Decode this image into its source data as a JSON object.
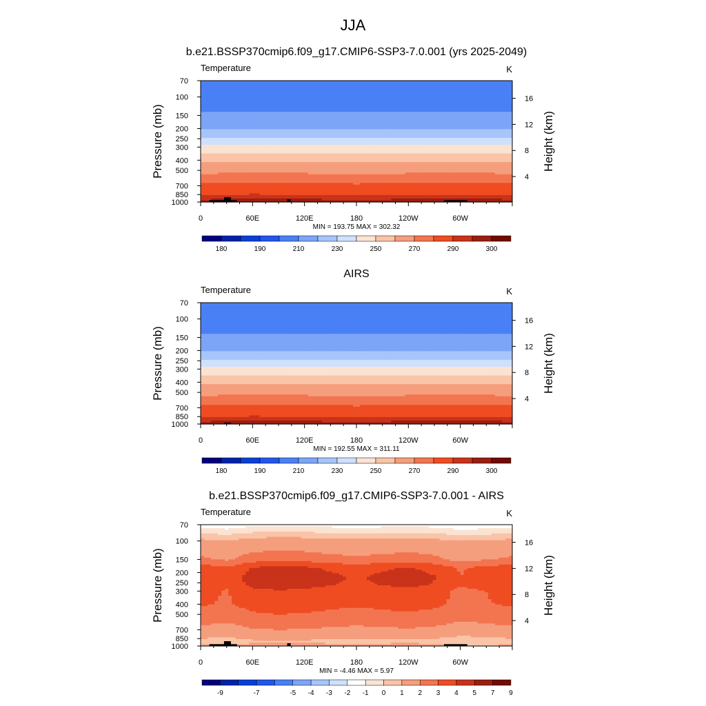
{
  "figure": {
    "title": "JJA"
  },
  "chart_data": [
    {
      "type": "heatmap",
      "title": "b.e21.BSSP370cmip6.f09_g17.CMIP6-SSP3-7.0.001 (yrs 2025-2049)",
      "variable": "Temperature",
      "units": "K",
      "ylabel": "Pressure (mb)",
      "y2label": "Height (km)",
      "stats": "MIN = 193.75  MAX = 302.32",
      "x_ticks": [
        "0",
        "60E",
        "120E",
        "180",
        "120W",
        "60W"
      ],
      "x_tick_lon": [
        0,
        60,
        120,
        180,
        240,
        300
      ],
      "xlim": [
        0,
        360
      ],
      "p_ticks": [
        "70",
        "100",
        "150",
        "200",
        "250",
        "300",
        "400",
        "500",
        "700",
        "850",
        "1000"
      ],
      "p_tick_values": [
        70,
        100,
        150,
        200,
        250,
        300,
        400,
        500,
        700,
        850,
        1000
      ],
      "ylim": [
        1000,
        70
      ],
      "y_scale": "log",
      "z_ticks": [
        "4",
        "8",
        "12",
        "16"
      ],
      "z_tick_values": [
        4,
        8,
        12,
        16
      ],
      "levels": [
        180,
        185,
        190,
        200,
        210,
        220,
        230,
        240,
        250,
        260,
        270,
        280,
        290,
        295,
        300
      ],
      "colorbar_labels": [
        "180",
        "190",
        "210",
        "230",
        "250",
        "270",
        "290",
        "300"
      ],
      "colorbar_label_levels": [
        180,
        190,
        210,
        230,
        250,
        270,
        290,
        300
      ],
      "colors": [
        "#00007f",
        "#0022aa",
        "#0a3fd6",
        "#2255ee",
        "#4a80f5",
        "#7ca5f8",
        "#a7c5fb",
        "#cfe0fd",
        "#fbe3d2",
        "#f9c4a8",
        "#f59e7d",
        "#f27550",
        "#ef4c22",
        "#c8331a",
        "#9b1e10",
        "#730a00"
      ],
      "profile": {
        "p": [
          70,
          85,
          100,
          120,
          150,
          180,
          200,
          230,
          250,
          280,
          300,
          350,
          400,
          450,
          500,
          600,
          700,
          800,
          850,
          900,
          950,
          1000
        ],
        "t": [
          203,
          203.5,
          204,
          206,
          212,
          217,
          220,
          226,
          231,
          238,
          243,
          250,
          258,
          263,
          267,
          275,
          282,
          287,
          289,
          292,
          295,
          298
        ]
      },
      "lon_anomaly": {
        "lon": [
          0,
          30,
          60,
          90,
          120,
          150,
          180,
          210,
          240,
          270,
          300,
          330,
          360
        ],
        "dt": [
          0,
          0.8,
          1.6,
          1.2,
          0.6,
          0.2,
          0,
          0.2,
          0.6,
          1.1,
          1.4,
          0.8,
          0
        ]
      },
      "surface_boxes": [
        {
          "lon0": 10,
          "lon1": 42,
          "p_top": 960
        },
        {
          "lon0": 27,
          "lon1": 35,
          "p_top": 900
        },
        {
          "lon0": 100,
          "lon1": 104,
          "p_top": 940
        },
        {
          "lon0": 281,
          "lon1": 308,
          "p_top": 960
        }
      ]
    },
    {
      "type": "heatmap",
      "title": "AIRS",
      "variable": "Temperature",
      "units": "K",
      "ylabel": "Pressure (mb)",
      "y2label": "Height (km)",
      "stats": "MIN = 192.55  MAX = 311.11",
      "x_ticks": [
        "0",
        "60E",
        "120E",
        "180",
        "120W",
        "60W"
      ],
      "x_tick_lon": [
        0,
        60,
        120,
        180,
        240,
        300
      ],
      "xlim": [
        0,
        360
      ],
      "p_ticks": [
        "70",
        "100",
        "150",
        "200",
        "250",
        "300",
        "400",
        "500",
        "700",
        "850",
        "1000"
      ],
      "p_tick_values": [
        70,
        100,
        150,
        200,
        250,
        300,
        400,
        500,
        700,
        850,
        1000
      ],
      "ylim": [
        1000,
        70
      ],
      "y_scale": "log",
      "z_ticks": [
        "4",
        "8",
        "12",
        "16"
      ],
      "z_tick_values": [
        4,
        8,
        12,
        16
      ],
      "levels": [
        180,
        185,
        190,
        200,
        210,
        220,
        230,
        240,
        250,
        260,
        270,
        280,
        290,
        295,
        300
      ],
      "colorbar_labels": [
        "180",
        "190",
        "210",
        "230",
        "250",
        "270",
        "290",
        "300"
      ],
      "colorbar_label_levels": [
        180,
        190,
        210,
        230,
        250,
        270,
        290,
        300
      ],
      "colors": [
        "#00007f",
        "#0022aa",
        "#0a3fd6",
        "#2255ee",
        "#4a80f5",
        "#7ca5f8",
        "#a7c5fb",
        "#cfe0fd",
        "#fbe3d2",
        "#f9c4a8",
        "#f59e7d",
        "#f27550",
        "#ef4c22",
        "#c8331a",
        "#9b1e10",
        "#730a00"
      ],
      "profile": {
        "p": [
          70,
          85,
          100,
          120,
          150,
          180,
          200,
          230,
          250,
          280,
          300,
          350,
          400,
          450,
          500,
          600,
          700,
          800,
          850,
          900,
          950,
          1000
        ],
        "t": [
          203,
          203.5,
          204,
          206,
          212,
          217,
          220,
          226,
          231,
          238,
          243,
          250,
          258,
          263,
          267,
          275,
          282,
          287,
          289,
          292,
          295,
          298
        ]
      },
      "lon_anomaly": {
        "lon": [
          0,
          30,
          60,
          90,
          120,
          150,
          180,
          210,
          240,
          270,
          300,
          330,
          360
        ],
        "dt": [
          0,
          0.8,
          1.6,
          1.2,
          0.6,
          0.2,
          0,
          0.2,
          0.6,
          1.1,
          1.4,
          0.8,
          0
        ]
      },
      "surface_boxes": [
        {
          "lon0": 27,
          "lon1": 35,
          "p_top": 970
        }
      ]
    },
    {
      "type": "heatmap",
      "title": "b.e21.BSSP370cmip6.f09_g17.CMIP6-SSP3-7.0.001 - AIRS",
      "variable": "Temperature",
      "units": "K",
      "ylabel": "Pressure (mb)",
      "y2label": "Height (km)",
      "stats": "MIN =  -4.46  MAX =   5.97",
      "x_ticks": [
        "0",
        "60E",
        "120E",
        "180",
        "120W",
        "60W"
      ],
      "x_tick_lon": [
        0,
        60,
        120,
        180,
        240,
        300
      ],
      "xlim": [
        0,
        360
      ],
      "p_ticks": [
        "70",
        "100",
        "150",
        "200",
        "250",
        "300",
        "400",
        "500",
        "700",
        "850",
        "1000"
      ],
      "p_tick_values": [
        70,
        100,
        150,
        200,
        250,
        300,
        400,
        500,
        700,
        850,
        1000
      ],
      "ylim": [
        1000,
        70
      ],
      "y_scale": "log",
      "z_ticks": [
        "4",
        "8",
        "12",
        "16"
      ],
      "z_tick_values": [
        4,
        8,
        12,
        16
      ],
      "levels": [
        -9,
        -8,
        -7,
        -6,
        -5,
        -4,
        -3,
        -2,
        -1,
        0,
        1,
        2,
        3,
        4,
        5,
        7,
        9
      ],
      "colorbar_labels": [
        "-9",
        "-7",
        "-5",
        "-4",
        "-3",
        "-2",
        "-1",
        "0",
        "1",
        "2",
        "3",
        "4",
        "5",
        "7",
        "9"
      ],
      "colorbar_label_levels": [
        -9,
        -7,
        -5,
        -4,
        -3,
        -2,
        -1,
        0,
        1,
        2,
        3,
        4,
        5,
        7,
        9
      ],
      "colors": [
        "#00007f",
        "#0022aa",
        "#0a3fd6",
        "#2255ee",
        "#4a80f5",
        "#7ca5f8",
        "#a7c5fb",
        "#cfe0fd",
        "#ffffff",
        "#fbe3d2",
        "#f9c4a8",
        "#f59e7d",
        "#f27550",
        "#ef4c22",
        "#c8331a",
        "#9b1e10",
        "#730a00"
      ],
      "profile": {
        "p": [
          70,
          80,
          90,
          100,
          120,
          150,
          180,
          220,
          260,
          300,
          400,
          500,
          600,
          700,
          800,
          850,
          900,
          950,
          1000
        ],
        "t": [
          -1.5,
          -0.5,
          0.5,
          1.3,
          1.6,
          2.2,
          3.6,
          3.9,
          3.8,
          3.3,
          3.1,
          2.7,
          2.2,
          1.7,
          1.3,
          1.0,
          0.6,
          0.9,
          1.2
        ]
      },
      "lon_anomaly": {
        "lon": [
          0,
          30,
          60,
          90,
          120,
          150,
          180,
          210,
          240,
          270,
          300,
          330,
          360
        ],
        "dt": [
          0,
          -0.4,
          0.4,
          0.6,
          0.5,
          0.2,
          0,
          0.2,
          0.4,
          0.1,
          -0.6,
          -0.3,
          0
        ]
      },
      "surface_boxes": [
        {
          "lon0": 10,
          "lon1": 42,
          "p_top": 960
        },
        {
          "lon0": 27,
          "lon1": 35,
          "p_top": 900
        },
        {
          "lon0": 100,
          "lon1": 104,
          "p_top": 940
        },
        {
          "lon0": 281,
          "lon1": 308,
          "p_top": 960
        }
      ]
    }
  ]
}
